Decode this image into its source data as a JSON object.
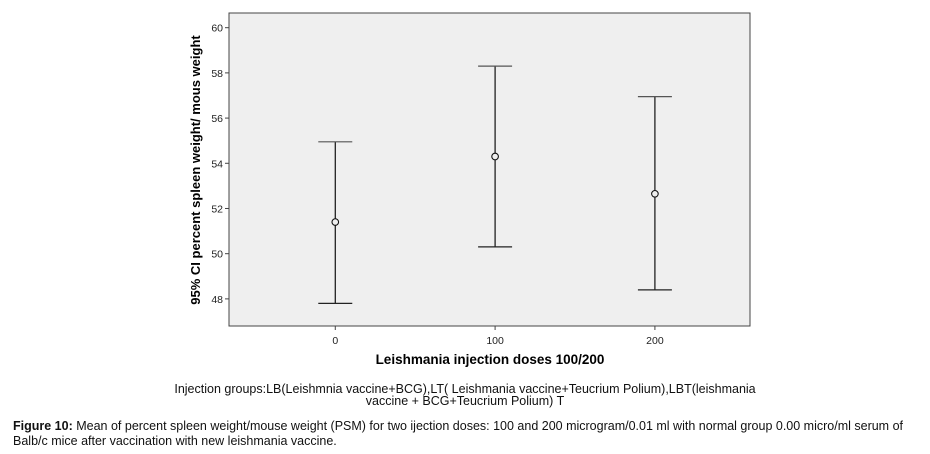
{
  "chart_data": {
    "type": "errorbar",
    "title": "",
    "xlabel": "Leishmania injection doses 100/200",
    "ylabel": "95% CI percent spleen weight/ mous weight",
    "categories": [
      "0",
      "100",
      "200"
    ],
    "x": [
      0,
      100,
      200
    ],
    "series": [
      {
        "name": "mean",
        "values": [
          51.4,
          54.3,
          52.65
        ]
      },
      {
        "name": "upper_95ci",
        "values": [
          54.95,
          58.3,
          56.95
        ]
      },
      {
        "name": "lower_95ci",
        "values": [
          47.8,
          50.3,
          48.4
        ]
      }
    ],
    "yticks": [
      "48",
      "50",
      "52",
      "54",
      "56",
      "58",
      "60"
    ],
    "ytick_values": [
      48,
      50,
      52,
      54,
      56,
      58,
      60
    ],
    "ylim": [
      46.8,
      60.65
    ],
    "xlim": [
      -66.5,
      259.5
    ],
    "grid": false,
    "plot_background": "#efefef"
  },
  "note": {
    "line1": "Injection groups:LB(Leishmnia vaccine+BCG),LT( Leishmania vaccine+Teucrium Polium),LBT(leishmania",
    "line2": "vaccine + BCG+Teucrium Polium)    T"
  },
  "caption": {
    "label": "Figure 10:",
    "text": " Mean of percent spleen weight/mouse weight (PSM) for two  ijection doses: 100 and 200 microgram/0.01 ml with normal group 0.00 micro/ml serum of Balb/c mice after vaccination with new leishmania vaccine."
  }
}
